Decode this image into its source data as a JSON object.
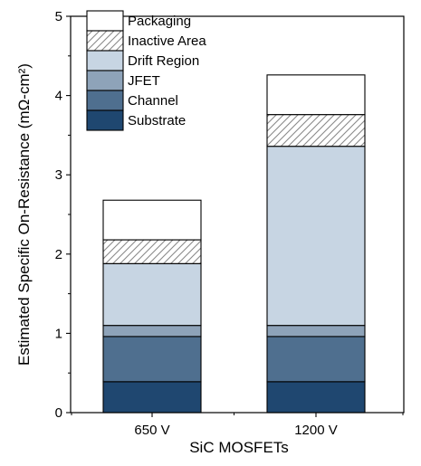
{
  "chart_data": {
    "type": "bar",
    "stacked": true,
    "categories": [
      "650 V",
      "1200 V"
    ],
    "xlabel": "SiC MOSFETs",
    "ylabel": "Estimated Specific On-Resistance (mΩ-cm²)",
    "ylim": [
      0,
      5
    ],
    "yticks": [
      "0",
      "1",
      "2",
      "3",
      "4",
      "5"
    ],
    "grid": false,
    "legend_position": "top-left",
    "series": [
      {
        "name": "Substrate",
        "values": [
          0.39,
          0.39
        ],
        "color": "#1f4770",
        "pattern": "solid"
      },
      {
        "name": "Channel",
        "values": [
          0.57,
          0.57
        ],
        "color": "#4f6f8f",
        "pattern": "solid"
      },
      {
        "name": "JFET",
        "values": [
          0.14,
          0.14
        ],
        "color": "#8ea3b9",
        "pattern": "solid"
      },
      {
        "name": "Drift Region",
        "values": [
          0.78,
          2.26
        ],
        "color": "#c7d5e3",
        "pattern": "solid"
      },
      {
        "name": "Inactive Area",
        "values": [
          0.3,
          0.4
        ],
        "color": "#ffffff",
        "pattern": "hatch"
      },
      {
        "name": "Packaging",
        "values": [
          0.5,
          0.5
        ],
        "color": "#ffffff",
        "pattern": "solid"
      }
    ]
  }
}
